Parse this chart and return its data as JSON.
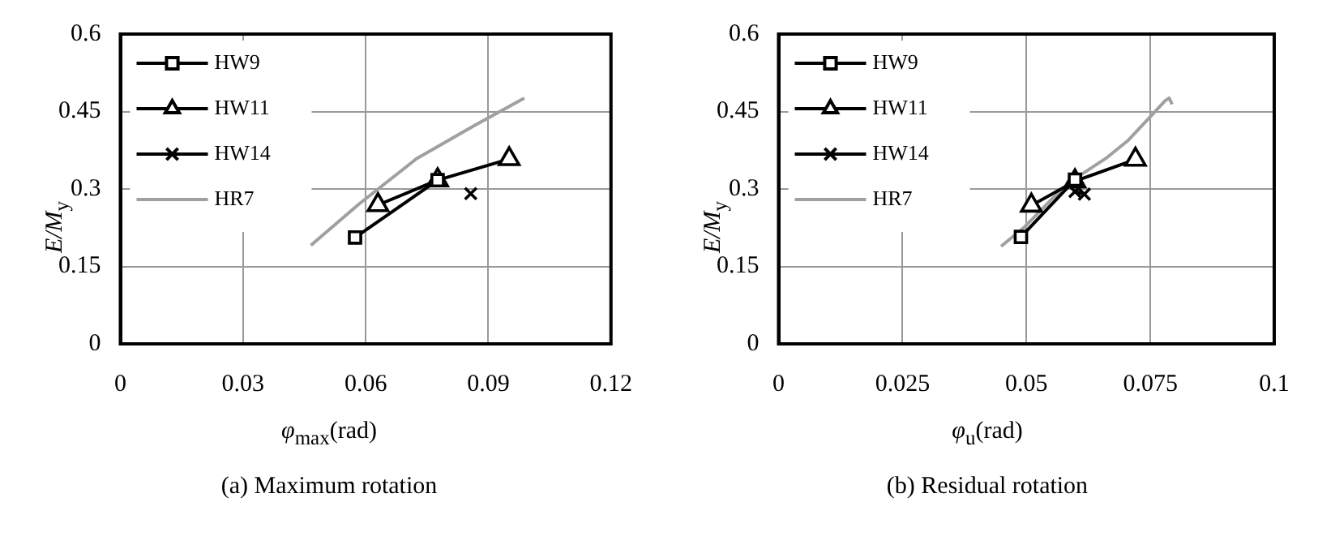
{
  "chart_data": [
    {
      "type": "line",
      "title": "(a) Maximum rotation",
      "xlabel": "φ$_{max}$(rad)",
      "ylabel": "E/M$_{y}$",
      "xlim": [
        0,
        0.12
      ],
      "xticks": [
        0,
        0.03,
        0.06,
        0.09,
        0.12
      ],
      "ylim": [
        0,
        0.6
      ],
      "yticks": [
        0,
        0.15,
        0.3,
        0.45,
        0.6
      ],
      "grid": true,
      "legend": "top left",
      "series": [
        {
          "name": "HW9",
          "color": "#000000",
          "marker": "square",
          "x": [
            0.0574,
            0.0776
          ],
          "values": [
            0.206,
            0.317
          ]
        },
        {
          "name": "HW11",
          "color": "#000000",
          "marker": "triangle",
          "x": [
            0.063,
            0.0776,
            0.0951
          ],
          "values": [
            0.269,
            0.317,
            0.358
          ]
        },
        {
          "name": "HW14",
          "color": "#000000",
          "marker": "cross",
          "x": [
            0.0857
          ],
          "values": [
            0.291
          ]
        },
        {
          "name": "HR7",
          "color": "#a0a0a0",
          "marker": "none",
          "x": [
            0.0466,
            0.0584,
            0.0725,
            0.0866,
            0.0988
          ],
          "values": [
            0.191,
            0.271,
            0.359,
            0.423,
            0.476
          ]
        }
      ]
    },
    {
      "type": "line",
      "title": "(b) Residual rotation",
      "xlabel": "φ$_{u}$(rad)",
      "ylabel": "E/M$_{y}$",
      "xlim": [
        0,
        0.1
      ],
      "xticks": [
        0,
        0.025,
        0.05,
        0.075,
        0.1
      ],
      "ylim": [
        0,
        0.6
      ],
      "yticks": [
        0,
        0.15,
        0.3,
        0.45,
        0.6
      ],
      "grid": true,
      "legend": "top left",
      "series": [
        {
          "name": "HW9",
          "color": "#000000",
          "marker": "square",
          "x": [
            0.0489,
            0.0598
          ],
          "values": [
            0.207,
            0.318
          ]
        },
        {
          "name": "HW11",
          "color": "#000000",
          "marker": "triangle",
          "x": [
            0.051,
            0.0598,
            0.072
          ],
          "values": [
            0.268,
            0.315,
            0.357
          ]
        },
        {
          "name": "HW14",
          "color": "#000000",
          "marker": "cross",
          "x": [
            0.0598,
            0.0617
          ],
          "values": [
            0.295,
            0.29
          ]
        },
        {
          "name": "HR7",
          "color": "#a0a0a0",
          "marker": "none",
          "x": [
            0.0449,
            0.0497,
            0.0552,
            0.0606,
            0.066,
            0.0704,
            0.0747,
            0.078,
            0.0788,
            0.0794
          ],
          "values": [
            0.189,
            0.227,
            0.281,
            0.325,
            0.359,
            0.393,
            0.437,
            0.471,
            0.476,
            0.464
          ]
        }
      ]
    }
  ]
}
